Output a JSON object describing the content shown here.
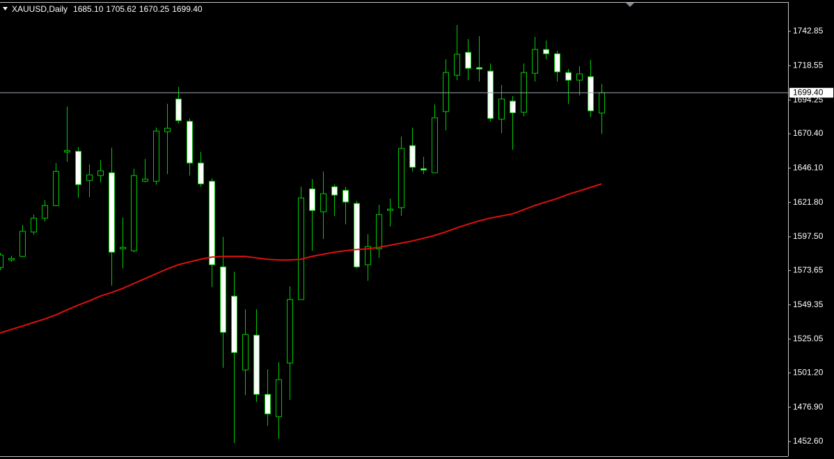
{
  "chart_data": {
    "type": "candlestick",
    "title": "XAUUSD,Daily",
    "header_values": [
      "1685.10",
      "1705.62",
      "1670.25",
      "1699.40"
    ],
    "categories": [
      null,
      null,
      null,
      null,
      null,
      null,
      null,
      null,
      null,
      null,
      null,
      null,
      null,
      null,
      null,
      null,
      null,
      null,
      null,
      null,
      null,
      null,
      null,
      null,
      null,
      null,
      null,
      null,
      null,
      null,
      null,
      null,
      null,
      null,
      null,
      null,
      null,
      null,
      null,
      null,
      null,
      null,
      null,
      null,
      null,
      null,
      null,
      null,
      null,
      null,
      null,
      null,
      null,
      null,
      null
    ],
    "open": [
      1575.7,
      1581.1,
      1583.6,
      1600.9,
      1610.7,
      1619.6,
      1657.5,
      1658.0,
      1637.3,
      1640.8,
      1642.8,
      1589.0,
      1587.6,
      1636.8,
      1636.8,
      1671.8,
      1695.0,
      1679.2,
      1649.7,
      1636.8,
      1576.2,
      1555.5,
      1503.3,
      1527.9,
      1486.0,
      1470.2,
      1508.2,
      1553.1,
      1631.4,
      1615.2,
      1632.9,
      1630.4,
      1621.1,
      1577.7,
      1589.0,
      1616.1,
      1618.1,
      1662.0,
      1645.7,
      1642.8,
      1686.1,
      1711.8,
      1728.0,
      1717.2,
      1714.7,
      1680.7,
      1693.5,
      1685.6,
      1713.2,
      1730.0,
      1727.0,
      1713.7,
      1708.3,
      1710.8,
      1685.1
    ],
    "high": [
      1586.1,
      1584.1,
      1605.8,
      1613.2,
      1623.5,
      1649.7,
      1689.6,
      1661.0,
      1648.7,
      1651.6,
      1660.5,
      1611.2,
      1645.7,
      1652.6,
      1674.8,
      1691.6,
      1703.4,
      1681.2,
      1657.5,
      1638.8,
      1597.4,
      1572.8,
      1546.2,
      1546.2,
      1503.8,
      1508.7,
      1562.4,
      1632.9,
      1638.3,
      1643.7,
      1634.4,
      1632.9,
      1623.0,
      1599.4,
      1620.1,
      1624.5,
      1668.4,
      1674.8,
      1654.1,
      1691.1,
      1723.1,
      1747.3,
      1737.4,
      1739.4,
      1720.1,
      1704.9,
      1697.0,
      1720.1,
      1738.9,
      1736.4,
      1729.0,
      1716.2,
      1718.2,
      1722.6,
      1705.62
    ],
    "low": [
      1573.8,
      1579.7,
      1583.1,
      1598.9,
      1608.3,
      1619.1,
      1650.6,
      1625.0,
      1625.5,
      1635.9,
      1562.9,
      1575.2,
      1586.6,
      1635.9,
      1634.4,
      1641.8,
      1677.8,
      1640.8,
      1632.9,
      1561.9,
      1504.7,
      1451.5,
      1485.5,
      1480.6,
      1463.8,
      1454.5,
      1482.1,
      1553.1,
      1587.6,
      1595.9,
      1612.2,
      1606.3,
      1575.2,
      1566.4,
      1582.6,
      1604.8,
      1612.2,
      1643.7,
      1641.8,
      1642.8,
      1672.8,
      1708.3,
      1708.3,
      1707.3,
      1679.2,
      1670.9,
      1659.0,
      1682.7,
      1707.3,
      1723.1,
      1707.3,
      1691.6,
      1697.5,
      1682.2,
      1670.25
    ],
    "close": [
      1584.6,
      1582.1,
      1601.4,
      1610.7,
      1619.6,
      1643.7,
      1658.5,
      1634.4,
      1641.3,
      1644.2,
      1586.6,
      1590.0,
      1640.8,
      1638.3,
      1672.3,
      1674.3,
      1679.7,
      1649.7,
      1634.9,
      1577.7,
      1529.9,
      1515.6,
      1528.4,
      1486.0,
      1472.2,
      1496.4,
      1553.1,
      1625.0,
      1616.1,
      1628.0,
      1627.0,
      1622.1,
      1576.2,
      1590.5,
      1613.2,
      1617.1,
      1660.0,
      1646.7,
      1644.7,
      1681.7,
      1713.7,
      1726.6,
      1716.7,
      1716.2,
      1681.2,
      1695.0,
      1685.2,
      1713.7,
      1730.0,
      1727.0,
      1714.2,
      1708.3,
      1712.8,
      1686.6,
      1699.4
    ],
    "up_color": "#000000",
    "down_color": "#ffffff",
    "wick_color": "#00d000",
    "moving_average": {
      "color": "#e01010",
      "values": [
        1529.4,
        1531.9,
        1534.3,
        1536.8,
        1539.3,
        1542.2,
        1545.7,
        1549.1,
        1552.1,
        1555.5,
        1558.0,
        1560.9,
        1564.4,
        1567.8,
        1571.3,
        1574.7,
        1577.7,
        1579.7,
        1581.6,
        1583.1,
        1583.6,
        1583.6,
        1583.6,
        1582.6,
        1581.6,
        1581.1,
        1581.1,
        1581.6,
        1583.6,
        1585.1,
        1586.6,
        1587.6,
        1588.5,
        1589.0,
        1590.0,
        1591.5,
        1593.0,
        1594.5,
        1596.4,
        1598.4,
        1600.9,
        1603.8,
        1606.3,
        1608.7,
        1610.7,
        1612.2,
        1613.7,
        1616.6,
        1619.6,
        1622.1,
        1624.5,
        1627.5,
        1629.9,
        1632.4,
        1634.9
      ]
    },
    "last_price": {
      "value": 1699.4,
      "label": "1699.40"
    },
    "ylim": [
      1442.25,
      1763.55
    ],
    "yticks": [
      1742.85,
      1718.55,
      1694.25,
      {
        "value": 1670.4,
        "label": "1670.40"
      },
      {
        "value": 1646.1,
        "label": "1646.10"
      },
      {
        "value": 1621.8,
        "label": "1621.80"
      },
      {
        "value": 1597.5,
        "label": "1597.50"
      },
      1573.65,
      1549.35,
      1525.05,
      {
        "value": 1501.2,
        "label": "1501.20"
      },
      {
        "value": 1476.9,
        "label": "1476.90"
      },
      {
        "value": 1452.6,
        "label": "1452.60"
      }
    ]
  }
}
